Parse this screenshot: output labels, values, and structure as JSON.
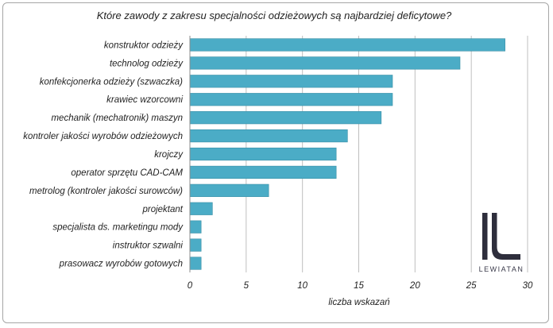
{
  "chart_data": {
    "type": "bar",
    "orientation": "horizontal",
    "title": "Które zawody z zakresu specjalności odzieżowych są najbardziej deficytowe?",
    "xlabel": "liczba wskazań",
    "ylabel": "",
    "xlim": [
      0,
      30
    ],
    "xticks": [
      0,
      5,
      10,
      15,
      20,
      25,
      30
    ],
    "grid": "vertical",
    "legend": "none",
    "bar_color": "#4bacc6",
    "categories": [
      "konstruktor odzieży",
      "technolog odzieży",
      "konfekcjonerka odzieży (szwaczka)",
      "krawiec wzorcowni",
      "mechanik (mechatronik) maszyn",
      "kontroler jakości wyrobów odzieżowych",
      "krojczy",
      "operator sprzętu CAD-CAM",
      "metrolog (kontroler jakości surowców)",
      "projektant",
      "specjalista ds. marketingu mody",
      "instruktor szwalni",
      "prasowacz wyrobów gotowych"
    ],
    "values": [
      28,
      24,
      18,
      18,
      17,
      14,
      13,
      13,
      7,
      2,
      1,
      1,
      1
    ]
  },
  "logo": {
    "text": "LEWIATAN",
    "icon": "lewiatan-logo-icon"
  }
}
